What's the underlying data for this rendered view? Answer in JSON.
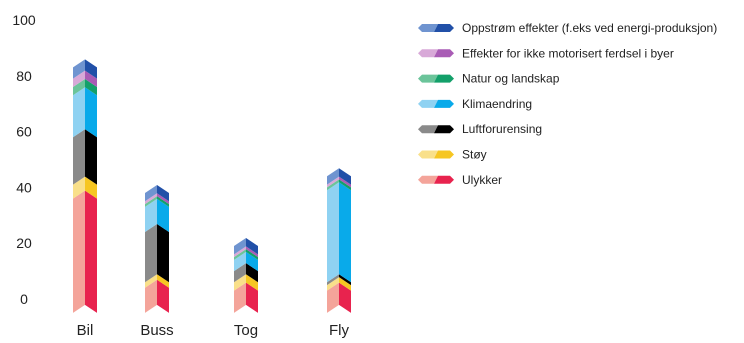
{
  "chart_data": {
    "type": "bar",
    "stacked": true,
    "categories": [
      "Bil",
      "Buss",
      "Tog",
      "Fly"
    ],
    "series": [
      {
        "name": "Ulykker",
        "colors": [
          "#f4a49a",
          "#e8234e"
        ],
        "values": [
          36,
          4,
          3,
          3
        ]
      },
      {
        "name": "Støy",
        "colors": [
          "#f9e08a",
          "#f6c622"
        ],
        "values": [
          5,
          2,
          3,
          2
        ]
      },
      {
        "name": "Luftforurensing",
        "colors": [
          "#8a8a8a",
          "#000000"
        ],
        "values": [
          17,
          18,
          4,
          1
        ]
      },
      {
        "name": "Klimaendring",
        "colors": [
          "#8fd2f2",
          "#09aaea"
        ],
        "values": [
          15,
          9,
          4,
          33
        ]
      },
      {
        "name": "Natur og landskap",
        "colors": [
          "#6bc49a",
          "#13a06a"
        ],
        "values": [
          3,
          1,
          1,
          1
        ]
      },
      {
        "name": "Effekter for ikke motorisert ferdsel i byer",
        "colors": [
          "#d8a9d8",
          "#a95cb5"
        ],
        "values": [
          3,
          1,
          1,
          1
        ]
      },
      {
        "name": "Oppstrøm effekter (f.eks ved energi-produksjon)",
        "colors": [
          "#6f94d0",
          "#2150a8"
        ],
        "values": [
          4,
          3,
          3,
          3
        ]
      }
    ],
    "yticks": [
      0,
      20,
      40,
      60,
      80,
      100
    ],
    "ylim": [
      -5,
      100
    ],
    "legend_position": "right",
    "grid": false
  }
}
